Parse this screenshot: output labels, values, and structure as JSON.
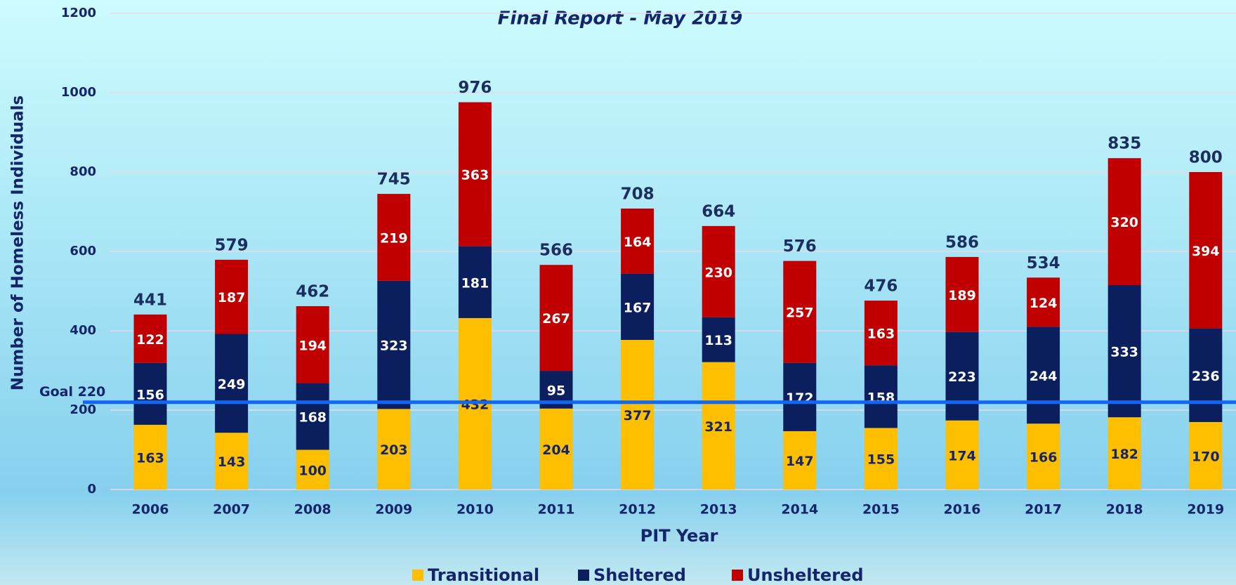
{
  "chart_data": {
    "type": "stacked_bar",
    "subtitle": "Final Report - May 2019",
    "y_label": "Number of Homeless Individuals",
    "x_label": "PIT Year",
    "categories": [
      "2006",
      "2007",
      "2008",
      "2009",
      "2010",
      "2011",
      "2012",
      "2013",
      "2014",
      "2015",
      "2016",
      "2017",
      "2018",
      "2019"
    ],
    "series": [
      {
        "name": "Transitional",
        "color": "#fdbf00",
        "values": [
          163,
          143,
          100,
          203,
          432,
          204,
          377,
          321,
          147,
          155,
          174,
          166,
          182,
          170
        ]
      },
      {
        "name": "Sheltered",
        "color": "#0b1f5e",
        "values": [
          156,
          249,
          168,
          323,
          181,
          95,
          167,
          113,
          172,
          158,
          223,
          244,
          333,
          236
        ]
      },
      {
        "name": "Unsheltered",
        "color": "#c00000",
        "values": [
          122,
          187,
          194,
          219,
          363,
          267,
          164,
          230,
          257,
          163,
          189,
          124,
          320,
          394
        ]
      }
    ],
    "totals": [
      441,
      579,
      462,
      745,
      976,
      566,
      708,
      664,
      576,
      476,
      586,
      534,
      835,
      800
    ],
    "goal": {
      "value": 220,
      "label": "Goal 220",
      "color": "#1466f2"
    },
    "ylim": [
      0,
      1200
    ],
    "yticks": [
      0,
      200,
      400,
      600,
      800,
      1000,
      1200
    ],
    "grid": true,
    "legend": "bottom"
  }
}
